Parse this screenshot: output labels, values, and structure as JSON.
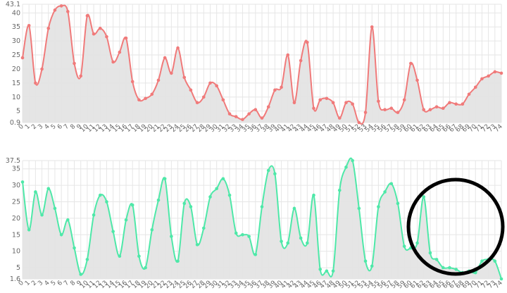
{
  "chart_data": [
    {
      "type": "area",
      "color": "#f07a7a",
      "fill": "#e4e4e4",
      "ylim": [
        0.9,
        43.1
      ],
      "yticks": [
        "43.1",
        "40",
        "35",
        "30",
        "25",
        "20",
        "15",
        "10",
        "5",
        "0.9"
      ],
      "ytick_values": [
        43.1,
        40,
        35,
        30,
        25,
        20,
        15,
        10,
        5,
        0.9
      ],
      "x": [
        0,
        1,
        2,
        3,
        4,
        5,
        6,
        7,
        8,
        9,
        10,
        11,
        12,
        13,
        14,
        15,
        16,
        17,
        18,
        19,
        20,
        21,
        22,
        23,
        24,
        25,
        26,
        27,
        28,
        29,
        30,
        31,
        32,
        33,
        34,
        35,
        36,
        37,
        38,
        39,
        40,
        41,
        42,
        43,
        44,
        45,
        46,
        47,
        48,
        49,
        50,
        51,
        52,
        53,
        54,
        55,
        56,
        57,
        58,
        59,
        60,
        61,
        62,
        63,
        64,
        65,
        66,
        67,
        68,
        69,
        70,
        71,
        72,
        73,
        74
      ],
      "values": [
        24,
        35.5,
        15,
        20,
        34.5,
        41,
        42.5,
        40.5,
        22,
        17.5,
        39,
        32.5,
        34.5,
        31.5,
        22.5,
        26,
        31,
        15.5,
        9,
        9.5,
        11,
        16,
        24,
        18.5,
        27.5,
        17,
        12.5,
        8,
        10,
        15,
        14,
        9,
        4,
        3,
        2,
        4,
        5.5,
        2.5,
        6.5,
        12.5,
        13.5,
        25,
        8,
        23,
        29.5,
        6,
        9,
        9.5,
        8,
        2.5,
        8,
        7.5,
        0.9,
        4.5,
        35,
        8.5,
        5.5,
        6,
        4.5,
        9,
        22,
        16,
        5.5,
        5.5,
        6.5,
        6,
        8,
        7.5,
        7.5,
        11,
        13.5,
        16.5,
        17.5,
        19,
        18.5
      ]
    },
    {
      "type": "area",
      "color": "#4ee8a8",
      "fill": "#e4e4e4",
      "ylim": [
        1.6,
        37.5
      ],
      "yticks": [
        "37.5",
        "35",
        "30",
        "25",
        "20",
        "15",
        "10",
        "5",
        "1.6"
      ],
      "ytick_values": [
        37.5,
        35,
        30,
        25,
        20,
        15,
        10,
        5,
        1.6
      ],
      "x": [
        0,
        1,
        2,
        3,
        4,
        5,
        6,
        7,
        8,
        9,
        10,
        11,
        12,
        13,
        14,
        15,
        16,
        17,
        18,
        19,
        20,
        21,
        22,
        23,
        24,
        25,
        26,
        27,
        28,
        29,
        30,
        31,
        32,
        33,
        34,
        35,
        36,
        37,
        38,
        39,
        40,
        41,
        42,
        43,
        44,
        45,
        46,
        47,
        48,
        49,
        50,
        51,
        52,
        53,
        54,
        55,
        56,
        57,
        58,
        59,
        60,
        61,
        62,
        63,
        64,
        65,
        66,
        67,
        68,
        69,
        70,
        71,
        72,
        73,
        74
      ],
      "values": [
        31,
        16.5,
        28,
        21,
        29,
        23,
        15,
        19.5,
        11,
        3,
        7.5,
        21,
        27,
        25,
        16,
        8.5,
        19.5,
        24,
        8.5,
        5,
        16.5,
        25.5,
        32,
        14.5,
        7,
        24.5,
        23.5,
        12,
        17,
        26.5,
        29,
        32,
        27,
        15.5,
        15,
        14.5,
        9,
        23.5,
        34.5,
        33.5,
        13,
        12.5,
        23,
        14,
        12.5,
        27,
        4.5,
        4,
        4,
        28.5,
        35.5,
        37.5,
        23,
        7,
        5.5,
        23.5,
        28,
        30.5,
        24.5,
        11.5,
        11,
        12.5,
        26.5,
        9.5,
        7.5,
        5,
        5,
        4.5,
        3.5,
        4,
        3.5,
        7,
        7.5,
        7,
        1.6
      ]
    }
  ]
}
